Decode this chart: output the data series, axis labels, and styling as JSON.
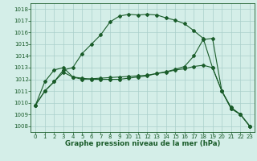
{
  "title": "Graphe pression niveau de la mer (hPa)",
  "background_color": "#d4eee8",
  "grid_color": "#aacfca",
  "line_color": "#1a5c2a",
  "xlim": [
    -0.5,
    23.5
  ],
  "ylim": [
    1007.5,
    1018.5
  ],
  "yticks": [
    1008,
    1009,
    1010,
    1011,
    1012,
    1013,
    1014,
    1015,
    1016,
    1017,
    1018
  ],
  "xticks": [
    0,
    1,
    2,
    3,
    4,
    5,
    6,
    7,
    8,
    9,
    10,
    11,
    12,
    13,
    14,
    15,
    16,
    17,
    18,
    19,
    20,
    21,
    22,
    23
  ],
  "s1": [
    1009.8,
    1011.0,
    1011.8,
    1012.6,
    1012.2,
    1012.1,
    1012.0,
    1012.0,
    1012.0,
    1012.0,
    1012.1,
    1012.2,
    1012.3,
    1012.5,
    1012.6,
    1012.8,
    1012.9,
    1013.1,
    1013.2,
    1013.0,
    1011.0,
    1009.6,
    1009.0,
    1008.0
  ],
  "s2": [
    1009.8,
    1011.0,
    1011.8,
    1012.8,
    1013.0,
    1014.2,
    1015.0,
    1015.8,
    1016.9,
    1017.4,
    1017.55,
    1017.5,
    1017.55,
    1017.5,
    1017.25,
    1017.05,
    1016.75,
    1016.15,
    1015.5,
    1013.0,
    1011.0,
    1009.5,
    1009.0,
    1008.0
  ],
  "s3": [
    1009.8,
    1011.8,
    1012.8,
    1013.0,
    1012.2,
    1012.0,
    1012.05,
    1012.1,
    1012.15,
    1012.2,
    1012.25,
    1012.3,
    1012.35,
    1012.5,
    1012.65,
    1012.85,
    1013.1,
    1014.0,
    1015.4,
    1015.5,
    1011.0,
    1009.5,
    1009.0,
    1008.0
  ],
  "ylabel_fontsize": 5.0,
  "xlabel_fontsize": 6.2,
  "tick_labelsize": 5.0,
  "linewidth": 0.8,
  "markersize": 2.0
}
